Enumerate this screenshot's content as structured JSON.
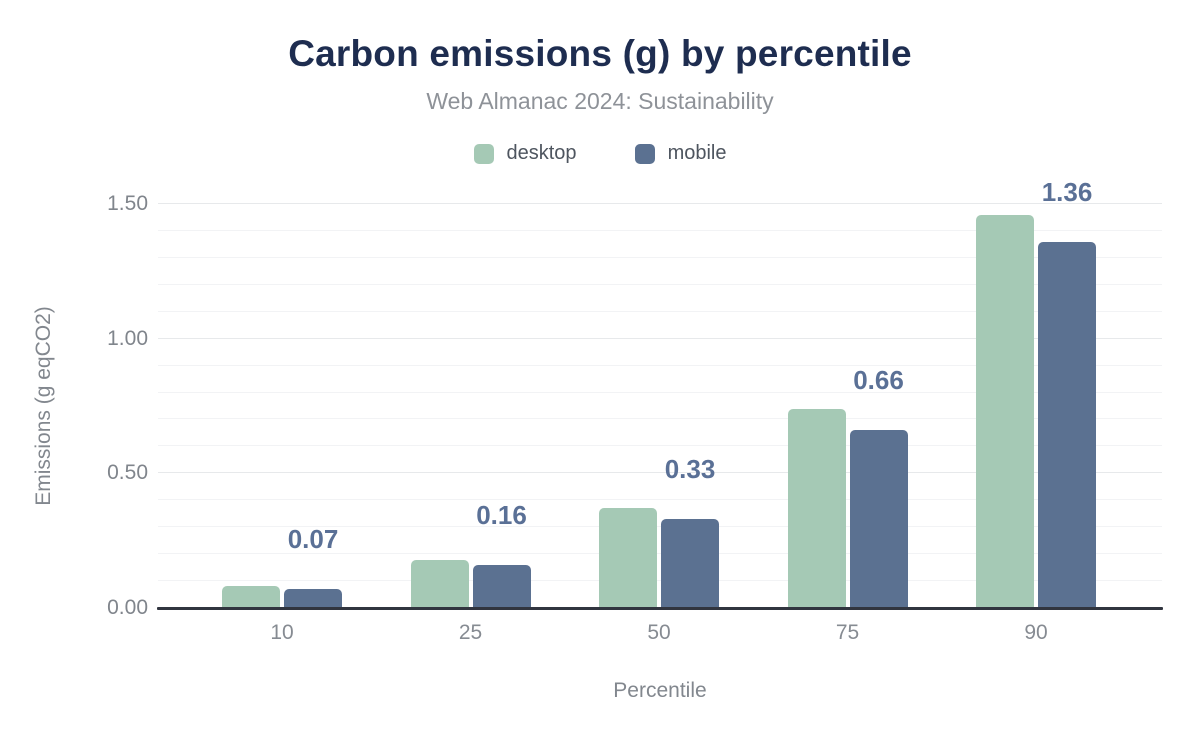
{
  "chart_data": {
    "type": "bar",
    "title": "Carbon emissions (g) by percentile",
    "subtitle": "Web Almanac 2024: Sustainability",
    "xlabel": "Percentile",
    "ylabel": "Emissions (g eqCO2)",
    "categories": [
      "10",
      "25",
      "50",
      "75",
      "90"
    ],
    "series": [
      {
        "name": "desktop",
        "color": "#a5c9b5",
        "values": [
          0.08,
          0.18,
          0.37,
          0.74,
          1.46
        ]
      },
      {
        "name": "mobile",
        "color": "#5b7191",
        "values": [
          0.07,
          0.16,
          0.33,
          0.66,
          1.36
        ]
      }
    ],
    "data_labels": [
      "0.07",
      "0.16",
      "0.33",
      "0.66",
      "1.36"
    ],
    "data_label_series": "mobile",
    "ylim": [
      0,
      1.5
    ],
    "yticks": [
      0.0,
      0.5,
      1.0,
      1.5
    ],
    "ytick_labels": [
      "0.00",
      "0.50",
      "1.00",
      "1.50"
    ],
    "minor_grid_step": 0.1,
    "grid": true,
    "legend_position": "top",
    "colors": {
      "title": "#1e2d50",
      "subtitle": "#8e9298",
      "data_label": "#5a7096",
      "axis_line": "#31353f",
      "tick_label": "#80858c"
    }
  }
}
